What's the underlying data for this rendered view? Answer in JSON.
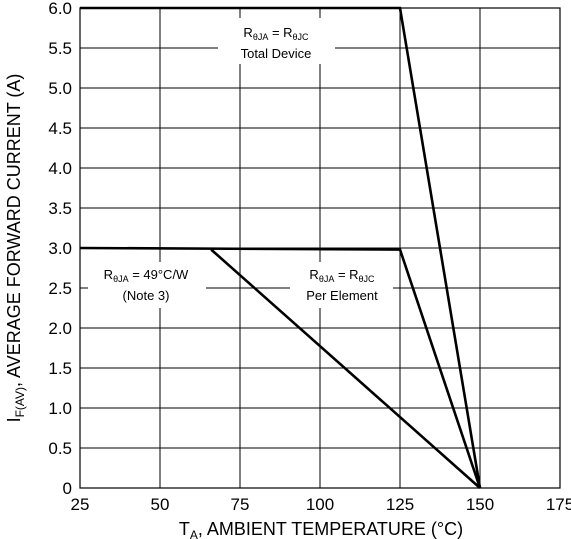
{
  "chart_data": {
    "type": "line",
    "xlabel": "T",
    "xlabel_sub": "A",
    "xlabel_rest": ", AMBIENT TEMPERATURE (°C)",
    "ylabel": "I",
    "ylabel_sub": "F(AV)",
    "ylabel_rest": ", AVERAGE FORWARD CURRENT (A)",
    "xlim": [
      25,
      175
    ],
    "ylim": [
      0,
      6.0
    ],
    "x_ticks": [
      "25",
      "50",
      "75",
      "100",
      "125",
      "150",
      "175"
    ],
    "y_ticks": [
      "0",
      "0.5",
      "1.0",
      "1.5",
      "2.0",
      "2.5",
      "3.0",
      "3.5",
      "4.0",
      "4.5",
      "5.0",
      "5.5",
      "6.0"
    ],
    "grid": true,
    "series": [
      {
        "points": [
          [
            25,
            6.0
          ],
          [
            125,
            6.0
          ],
          [
            150,
            0
          ]
        ]
      },
      {
        "points": [
          [
            25,
            3.0
          ],
          [
            125,
            2.98
          ],
          [
            150,
            0
          ]
        ]
      },
      {
        "points": [
          [
            66,
            2.98
          ],
          [
            150,
            0
          ]
        ]
      }
    ],
    "annotations": [
      {
        "line1": {
          "a": "R",
          "a_sub": "θJA",
          "mid": " = R",
          "b_sub": "θJC"
        },
        "line2": "Total Device"
      },
      {
        "line1": {
          "a": "R",
          "a_sub": "θJA",
          "mid": " = 49°C/W"
        },
        "line2": "(Note 3)"
      },
      {
        "line1": {
          "a": "R",
          "a_sub": "θJA",
          "mid": " = R",
          "b_sub": "θJC"
        },
        "line2": "Per Element"
      }
    ],
    "color": "#000000"
  }
}
